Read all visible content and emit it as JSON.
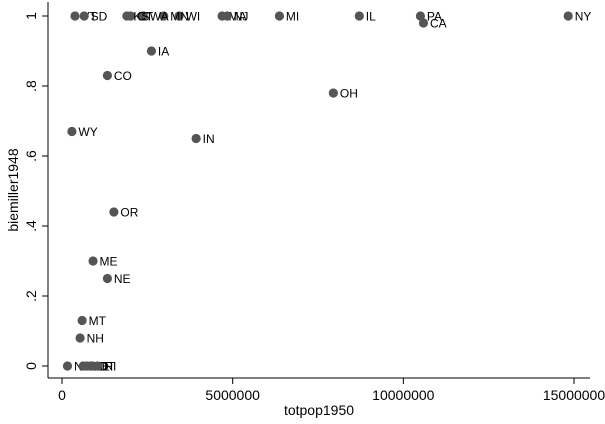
{
  "chart_data": {
    "type": "scatter",
    "title": "",
    "xlabel": "totpop1950",
    "ylabel": "biemiller1948",
    "xlim": [
      0,
      15000000
    ],
    "ylim": [
      0,
      1
    ],
    "x_ticks": [
      0,
      5000000,
      10000000,
      15000000
    ],
    "x_tick_labels": [
      "0",
      "5000000",
      "10000000",
      "15000000"
    ],
    "y_ticks": [
      0,
      0.2,
      0.4,
      0.6,
      0.8,
      1
    ],
    "y_tick_labels": [
      "0",
      ".2",
      ".4",
      ".6",
      ".8",
      "1"
    ],
    "grid": false,
    "legend": "none",
    "marker_color": "#555555",
    "points": [
      {
        "label": "NY",
        "x": 14830000,
        "y": 1
      },
      {
        "label": "PA",
        "x": 10500000,
        "y": 1
      },
      {
        "label": "CA",
        "x": 10590000,
        "y": 0.98
      },
      {
        "label": "IL",
        "x": 8710000,
        "y": 1
      },
      {
        "label": "OH",
        "x": 7950000,
        "y": 0.78
      },
      {
        "label": "MI",
        "x": 6370000,
        "y": 1
      },
      {
        "label": "MA",
        "x": 4690000,
        "y": 1
      },
      {
        "label": "NJ",
        "x": 4840000,
        "y": 1
      },
      {
        "label": "IN",
        "x": 3930000,
        "y": 0.65
      },
      {
        "label": "WI",
        "x": 3430000,
        "y": 1
      },
      {
        "label": "MN",
        "x": 2980000,
        "y": 1
      },
      {
        "label": "IA",
        "x": 2620000,
        "y": 0.9
      },
      {
        "label": "WA",
        "x": 2380000,
        "y": 1
      },
      {
        "label": "CT",
        "x": 2010000,
        "y": 1
      },
      {
        "label": "KS",
        "x": 1900000,
        "y": 1
      },
      {
        "label": "CO",
        "x": 1330000,
        "y": 0.83
      },
      {
        "label": "OR",
        "x": 1520000,
        "y": 0.44
      },
      {
        "label": "NE",
        "x": 1330000,
        "y": 0.25
      },
      {
        "label": "ME",
        "x": 910000,
        "y": 0.3
      },
      {
        "label": "MT",
        "x": 590000,
        "y": 0.13
      },
      {
        "label": "NH",
        "x": 530000,
        "y": 0.08
      },
      {
        "label": "WY",
        "x": 290000,
        "y": 0.67
      },
      {
        "label": "VT",
        "x": 380000,
        "y": 1
      },
      {
        "label": "SD",
        "x": 650000,
        "y": 1
      },
      {
        "label": "NV",
        "x": 160000,
        "y": 0
      },
      {
        "label": "ND",
        "x": 620000,
        "y": 0
      },
      {
        "label": "DE",
        "x": 720000,
        "y": 0
      },
      {
        "label": "ID",
        "x": 830000,
        "y": 0
      },
      {
        "label": "UT",
        "x": 900000,
        "y": 0
      },
      {
        "label": "RI",
        "x": 1050000,
        "y": 0
      }
    ]
  }
}
